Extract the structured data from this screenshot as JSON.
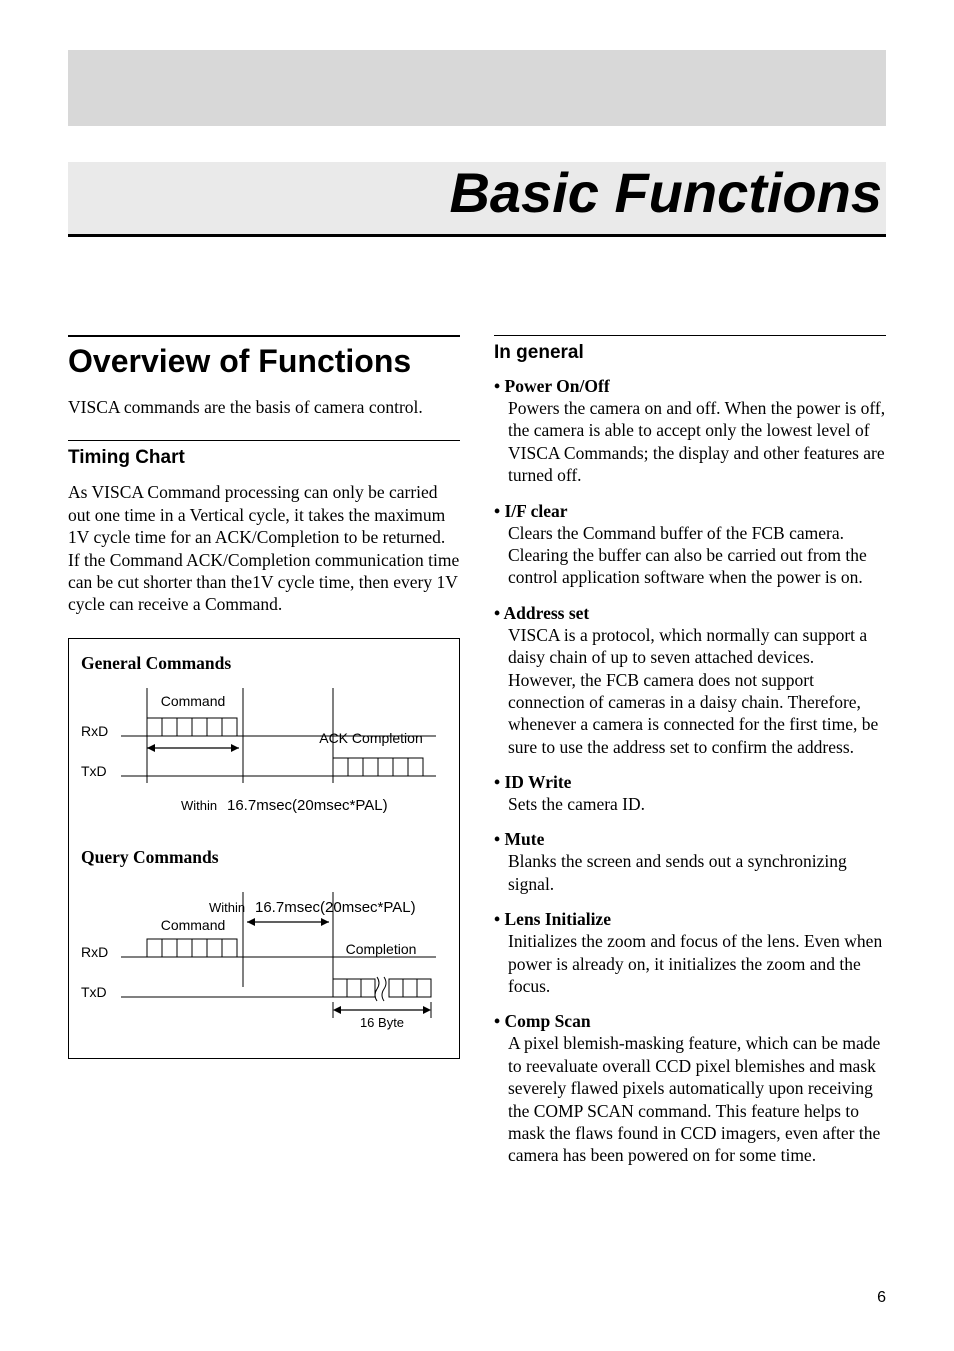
{
  "chapter_title": "Basic Functions",
  "page_number": "6",
  "colors": {
    "band": "#d8d8d8",
    "title_bg": "#eaeaea",
    "text": "#000000",
    "page_bg": "#ffffff"
  },
  "fonts": {
    "heading": "Helvetica",
    "body": "Times New Roman",
    "chapter_fontsize": 56,
    "h1_fontsize": 32,
    "h2_fontsize": 19,
    "body_fontsize": 17.5
  },
  "left": {
    "h1": "Overview of Functions",
    "intro": "VISCA commands are the basis of camera control.",
    "h2": "Timing Chart",
    "timing_para": "As VISCA Command processing can only be carried out one time in a Vertical cycle, it takes the maximum 1V cycle time for an ACK/Completion to be returned. If the Command ACK/Completion communication time can be cut shorter than the1V cycle time, then every 1V cycle can receive a Command.",
    "diagram": {
      "general": {
        "title": "General Commands",
        "rxd": "RxD",
        "txd": "TxD",
        "command": "Command",
        "ack": "ACK",
        "completion": "Completion",
        "within": "Within",
        "period": "16.7msec(20msec*PAL)"
      },
      "query": {
        "title": "Query Commands",
        "rxd": "RxD",
        "txd": "TxD",
        "command": "Command",
        "completion": "Completion",
        "within": "Within",
        "period": "16.7msec(20msec*PAL)",
        "bytes": "16 Byte"
      }
    }
  },
  "right": {
    "h2": "In general",
    "items": [
      {
        "title": "• Power On/Off",
        "body": "Powers the camera on and off. When the power is off, the camera is able to accept only the lowest level of VISCA Commands; the display and other features are turned off."
      },
      {
        "title": "• I/F clear",
        "body": "Clears the Command buffer of the FCB camera. Clearing the buffer can also be carried out from the control application software when the power is on."
      },
      {
        "title": "• Address set",
        "body": "VISCA is a protocol, which normally can support a daisy chain of up to seven attached devices. However, the FCB camera does not support connection of cameras in a daisy chain. Therefore, whenever a camera is connected for the first time, be sure to use the address set to confirm the address."
      },
      {
        "title": "• ID Write",
        "body": "Sets the camera ID."
      },
      {
        "title": "• Mute",
        "body": "Blanks the screen and sends out a synchronizing signal."
      },
      {
        "title": "• Lens Initialize",
        "body": "Initializes the zoom and focus of the lens. Even when power is already on, it initializes the zoom and the focus."
      },
      {
        "title": "• Comp Scan",
        "body": "A pixel blemish-masking feature, which can be made to reevaluate overall CCD pixel blemishes and mask severely flawed pixels automatically upon receiving the COMP SCAN command. This feature helps to mask the flaws found in CCD imagers, even after the camera has been powered on for some time."
      }
    ]
  }
}
